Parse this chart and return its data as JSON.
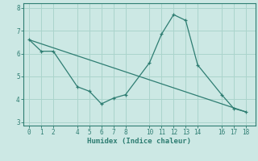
{
  "xlabel": "Humidex (Indice chaleur)",
  "background_color": "#cce8e4",
  "line_color": "#2e7d72",
  "grid_color": "#aad4cc",
  "line1_x": [
    0,
    1,
    2,
    4,
    5,
    6,
    7,
    8,
    10,
    11,
    12,
    13,
    14,
    16,
    17,
    18
  ],
  "line1_y": [
    6.6,
    6.1,
    6.1,
    4.55,
    4.35,
    3.8,
    4.05,
    4.2,
    5.6,
    6.85,
    7.7,
    7.45,
    5.5,
    4.2,
    3.6,
    3.45
  ],
  "line2_x": [
    0,
    18
  ],
  "line2_y": [
    6.6,
    3.45
  ],
  "xlim": [
    -0.5,
    18.8
  ],
  "ylim": [
    2.85,
    8.2
  ],
  "xticks": [
    0,
    1,
    2,
    4,
    5,
    6,
    7,
    8,
    10,
    11,
    12,
    13,
    14,
    16,
    17,
    18
  ],
  "yticks": [
    3,
    4,
    5,
    6,
    7,
    8
  ],
  "tick_fontsize": 5.5,
  "xlabel_fontsize": 6.5
}
